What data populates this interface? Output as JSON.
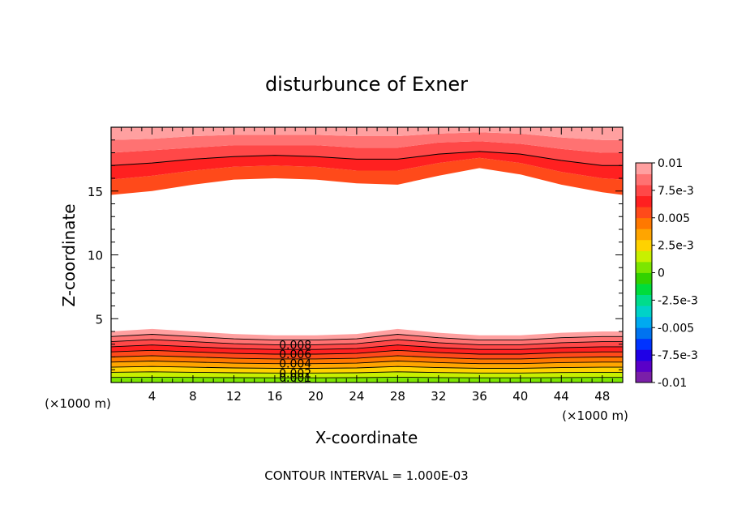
{
  "chart_data": {
    "type": "contour",
    "title": "disturbunce of Exner",
    "xlabel": "X-coordinate",
    "ylabel": "Z-coordinate",
    "x_unit": "(×1000 m)",
    "y_unit": "(×1000 m)",
    "xlim": [
      0,
      50
    ],
    "ylim": [
      0,
      20
    ],
    "x_ticks": [
      {
        "v": 4,
        "label": "4"
      },
      {
        "v": 8,
        "label": "8"
      },
      {
        "v": 12,
        "label": "12"
      },
      {
        "v": 16,
        "label": "16"
      },
      {
        "v": 20,
        "label": "20"
      },
      {
        "v": 24,
        "label": "24"
      },
      {
        "v": 28,
        "label": "28"
      },
      {
        "v": 32,
        "label": "32"
      },
      {
        "v": 36,
        "label": "36"
      },
      {
        "v": 40,
        "label": "40"
      },
      {
        "v": 44,
        "label": "44"
      },
      {
        "v": 48,
        "label": "48"
      }
    ],
    "y_ticks": [
      {
        "v": 5,
        "label": "5"
      },
      {
        "v": 10,
        "label": "10"
      },
      {
        "v": 15,
        "label": "15"
      }
    ],
    "contour_interval_text": "CONTOUR INTERVAL = 1.000E-03",
    "contour_interval": 0.001,
    "contour_labels": [
      "0.008",
      "0.006",
      "0.004",
      "0.002",
      "0.001"
    ],
    "colorbar": {
      "range": [
        -0.01,
        0.01
      ],
      "labels": [
        {
          "v": 0.01,
          "label": "0.01"
        },
        {
          "v": 0.0075,
          "label": "7.5e-3"
        },
        {
          "v": 0.005,
          "label": "0.005"
        },
        {
          "v": 0.0025,
          "label": "2.5e-3"
        },
        {
          "v": 0,
          "label": "0"
        },
        {
          "v": -0.0025,
          "label": "-2.5e-3"
        },
        {
          "v": -0.005,
          "label": "-0.005"
        },
        {
          "v": -0.0075,
          "label": "-7.5e-3"
        },
        {
          "v": -0.01,
          "label": "-0.01"
        }
      ],
      "colors": [
        "#7a1fa8",
        "#5a00c8",
        "#1f00e6",
        "#0033ff",
        "#0073f0",
        "#00aaf0",
        "#00d2c8",
        "#00dc8c",
        "#00dc3c",
        "#32d200",
        "#7ce600",
        "#c8f000",
        "#ffd200",
        "#ffa500",
        "#ff7800",
        "#ff4a1a",
        "#ff2020",
        "#ff4848",
        "#ff7272",
        "#ffa0a0"
      ]
    },
    "top_band": {
      "profile_x": [
        0,
        4,
        8,
        12,
        16,
        20,
        24,
        28,
        32,
        36,
        40,
        44,
        48,
        50
      ],
      "level_values": [
        0.006,
        0.007,
        0.008,
        0.009,
        0.01
      ],
      "level_heights": [
        [
          14.7,
          15.0,
          15.5,
          15.9,
          16.0,
          15.9,
          15.6,
          15.5,
          16.2,
          16.8,
          16.3,
          15.5,
          14.9,
          14.7
        ],
        [
          15.9,
          16.2,
          16.6,
          16.9,
          17.0,
          16.9,
          16.6,
          16.6,
          17.2,
          17.6,
          17.2,
          16.5,
          16.0,
          15.9
        ],
        [
          17.0,
          17.2,
          17.5,
          17.7,
          17.8,
          17.7,
          17.5,
          17.5,
          17.9,
          18.1,
          17.9,
          17.4,
          17.0,
          17.0
        ],
        [
          18.0,
          18.2,
          18.4,
          18.6,
          18.6,
          18.6,
          18.4,
          18.4,
          18.8,
          18.9,
          18.7,
          18.3,
          18.0,
          18.0
        ],
        [
          19.0,
          19.1,
          19.3,
          19.4,
          19.4,
          19.4,
          19.3,
          19.3,
          19.5,
          19.6,
          19.5,
          19.2,
          19.0,
          19.0
        ]
      ]
    },
    "bottom_band": {
      "profile_x": [
        0,
        4,
        8,
        12,
        16,
        20,
        24,
        28,
        32,
        36,
        40,
        44,
        48,
        50
      ],
      "profile_top_km": [
        4.0,
        4.2,
        4.0,
        3.8,
        3.7,
        3.7,
        3.8,
        4.2,
        3.9,
        3.7,
        3.7,
        3.9,
        4.0,
        4.0
      ],
      "level_values": [
        0.001,
        0.002,
        0.003,
        0.004,
        0.005,
        0.006,
        0.007,
        0.008,
        0.009
      ],
      "note": "bottom band: highest values near top of band, decreasing toward surface (to ~0.001 near z=0)"
    }
  }
}
